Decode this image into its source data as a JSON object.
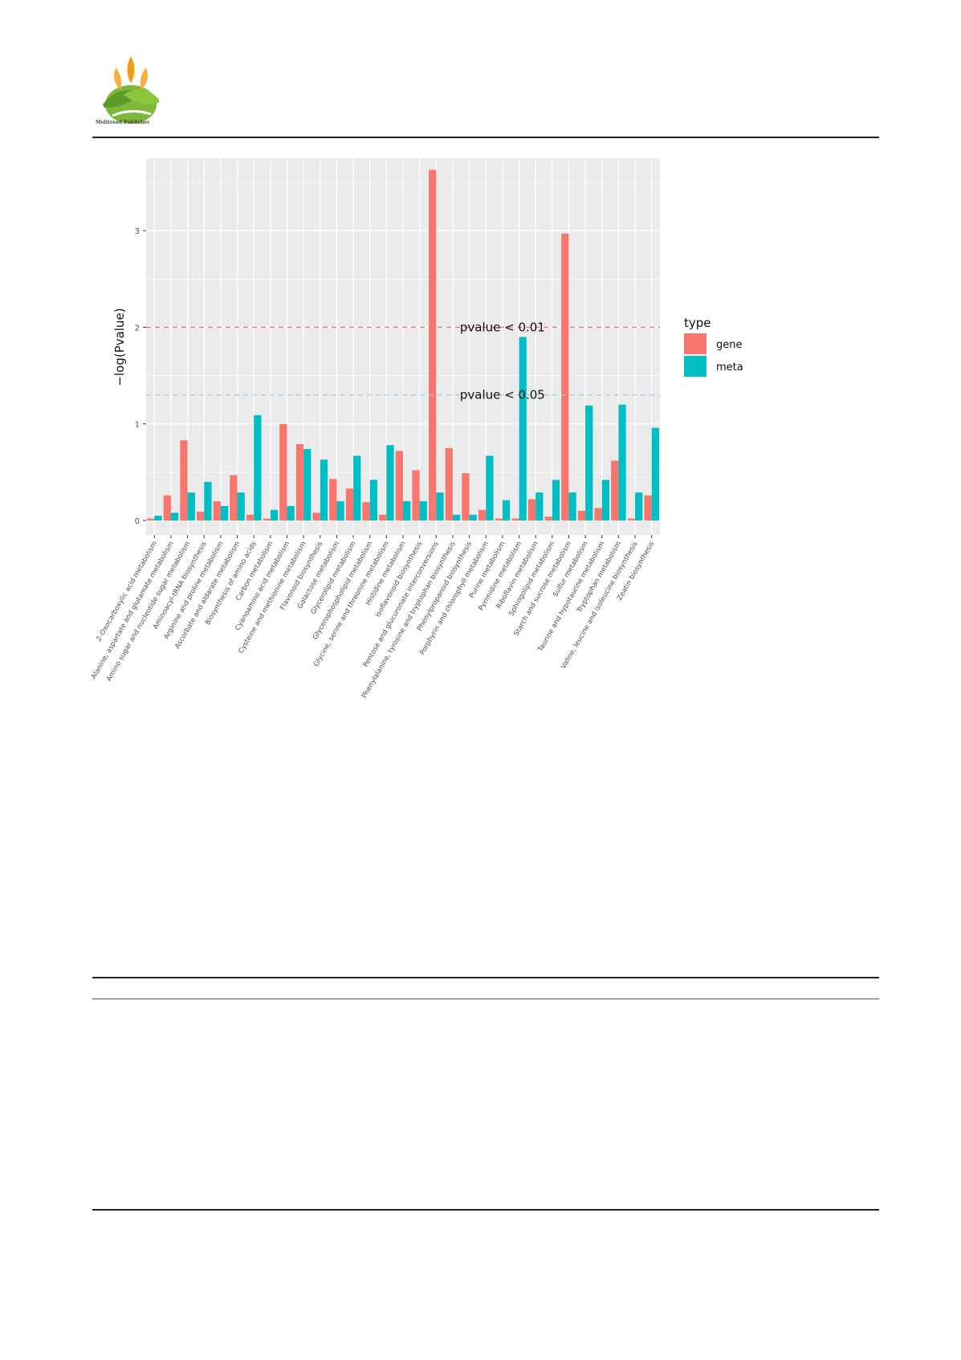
{
  "header": {
    "publisher": "Molitreed Publisher"
  },
  "colors": {
    "gene": "#F8766D",
    "meta": "#00BFC4",
    "panel_bg": "#EBEBEB",
    "grid": "#FFFFFF",
    "threshold_001": "#E87A7A",
    "threshold_005": "#9FCBEA"
  },
  "chart_data": {
    "type": "bar",
    "ylabel": "−log(Pvalue)",
    "xlabel": "",
    "ylim": [
      -0.15,
      3.75
    ],
    "yticks": [
      0,
      1,
      2,
      3
    ],
    "grid": true,
    "legend_position": "right",
    "legend": {
      "title": "type",
      "entries": [
        "gene",
        "meta"
      ]
    },
    "annotations": [
      {
        "text": "pvalue < 0.01",
        "y": 2.0,
        "x_category": "Purine metabolism"
      },
      {
        "text": "pvalue < 0.05",
        "y": 1.3,
        "x_category": "Purine metabolism"
      }
    ],
    "hlines": [
      {
        "y": 2.0,
        "color": "#E87A7A",
        "style": "dashed"
      },
      {
        "y": 1.3,
        "color": "#9FCBEA",
        "style": "dashed"
      }
    ],
    "categories": [
      "2-Oxocarboxylic acid metabolism",
      "Alanine, aspartate and glutamate metabolism",
      "Amino sugar and nucleotide sugar metabolism",
      "Aminoacyl-tRNA biosynthesis",
      "Arginine and proline metabolism",
      "Ascorbate and aldarate metabolism",
      "Biosynthesis of amino acids",
      "Carbon metabolism",
      "Cyanoamino acid metabolism",
      "Cysteine and methionine metabolism",
      "Flavonoid biosynthesis",
      "Galactose metabolism",
      "Glycerolipid metabolism",
      "Glycerophospholipid metabolism",
      "Glycine, serine and threonine metabolism",
      "Histidine metabolism",
      "Isoflavonoid biosynthesis",
      "Pentose and glucuronate interconversions",
      "Phenylalanine, tyrosine and tryptophan biosynthesis",
      "Phenylpropanoid biosynthesis",
      "Porphyrin and chlorophyll metabolism",
      "Purine metabolism",
      "Pyrimidine metabolism",
      "Riboflavin metabolism",
      "Sphingolipid metabolism",
      "Starch and sucrose metabolism",
      "Sulfur metabolism",
      "Taurine and hypotaurine metabolism",
      "Tryptophan metabolism",
      "Valine, leucine and isoleucine biosynthesis",
      "Zeatin biosynthesis"
    ],
    "series": [
      {
        "name": "gene",
        "values": [
          0.02,
          0.26,
          0.83,
          0.09,
          0.2,
          0.47,
          0.06,
          0.02,
          1.0,
          0.79,
          0.08,
          0.43,
          0.33,
          0.19,
          0.06,
          0.72,
          0.52,
          3.63,
          0.75,
          0.49,
          0.11,
          0.02,
          0.02,
          0.22,
          0.04,
          2.97,
          0.1,
          0.13,
          0.62,
          0.02,
          0.26
        ]
      },
      {
        "name": "meta",
        "values": [
          0.05,
          0.08,
          0.29,
          0.4,
          0.15,
          0.29,
          1.09,
          0.11,
          0.15,
          0.74,
          0.63,
          0.2,
          0.67,
          0.42,
          0.78,
          0.2,
          0.2,
          0.29,
          0.06,
          0.06,
          0.67,
          0.21,
          1.9,
          0.29,
          0.42,
          0.29,
          1.19,
          0.42,
          1.2,
          0.29,
          0.96
        ]
      }
    ]
  }
}
